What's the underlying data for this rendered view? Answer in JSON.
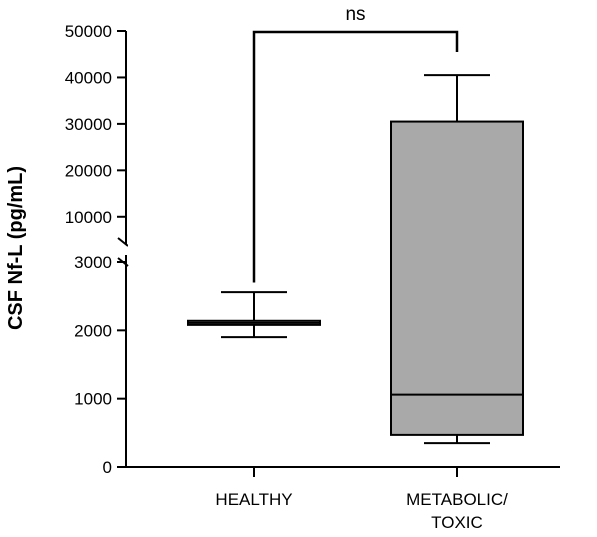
{
  "chart_data": {
    "type": "box",
    "ylabel": "CSF Nf-L (pg/mL)",
    "categories": [
      "HEALTHY",
      "METABOLIC/ TOXIC"
    ],
    "category_lines": [
      [
        "HEALTHY"
      ],
      [
        "METABOLIC/",
        "TOXIC"
      ]
    ],
    "y_axis_broken": true,
    "y_lower_segment": {
      "range": [
        0,
        3000
      ],
      "ticks": [
        "0",
        "1000",
        "2000",
        "3000"
      ]
    },
    "y_upper_segment": {
      "range": [
        5000,
        50000
      ],
      "ticks": [
        "10000",
        "20000",
        "30000",
        "40000",
        "50000"
      ]
    },
    "boxes": [
      {
        "category": "HEALTHY",
        "min": 1900,
        "q1": 2080,
        "median": 2110,
        "q3": 2140,
        "max": 2560
      },
      {
        "category": "METABOLIC/ TOXIC",
        "min": 350,
        "q1": 470,
        "median": 1060,
        "q3": 30500,
        "max": 40500
      }
    ],
    "significance": {
      "between": [
        "HEALTHY",
        "METABOLIC/ TOXIC"
      ],
      "label": "ns"
    },
    "colors": {
      "box_fill": "#a9a9a9",
      "stroke": "#000000"
    }
  }
}
